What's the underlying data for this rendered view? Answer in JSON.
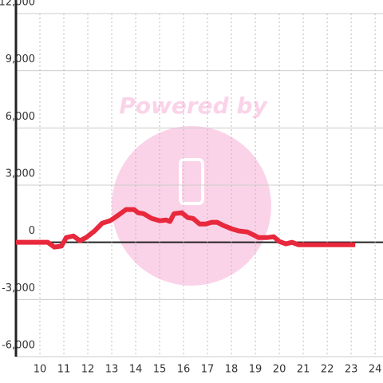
{
  "chart_data": {
    "type": "line",
    "watermark": "Powered by",
    "x": [
      9.0,
      10.33,
      10.6,
      10.9,
      11.1,
      11.4,
      11.67,
      11.93,
      12.27,
      12.6,
      12.93,
      13.27,
      13.6,
      13.93,
      14.1,
      14.33,
      14.67,
      15.0,
      15.27,
      15.43,
      15.6,
      15.93,
      16.17,
      16.4,
      16.67,
      16.93,
      17.17,
      17.4,
      17.67,
      18.0,
      18.33,
      18.67,
      18.93,
      19.13,
      19.5,
      19.77,
      20.0,
      20.27,
      20.53,
      20.8,
      23.17
    ],
    "series": [
      {
        "color": "#e8283c",
        "values": [
          0,
          0,
          -250,
          -200,
          250,
          330,
          80,
          250,
          580,
          1000,
          1130,
          1420,
          1720,
          1720,
          1550,
          1500,
          1250,
          1130,
          1170,
          1090,
          1500,
          1550,
          1300,
          1250,
          960,
          960,
          1050,
          1050,
          880,
          710,
          590,
          540,
          380,
          250,
          250,
          290,
          40,
          -80,
          0,
          -130,
          -130
        ]
      }
    ],
    "xlim": [
      9,
      24.33
    ],
    "ylim": [
      -6000,
      12000
    ],
    "xticks": [
      10,
      11,
      12,
      13,
      14,
      15,
      16,
      17,
      18,
      19,
      20,
      21,
      22,
      23,
      24
    ],
    "yticks": [
      {
        "value": -6000,
        "label": "-6,000"
      },
      {
        "value": -3000,
        "label": "-3,000"
      },
      0,
      {
        "value": 3000,
        "label": "3,000"
      },
      {
        "value": 6000,
        "label": "6,000"
      },
      {
        "value": 9000,
        "label": "9,000"
      },
      {
        "value": 12000,
        "label": "12,000"
      }
    ],
    "grid": true
  }
}
